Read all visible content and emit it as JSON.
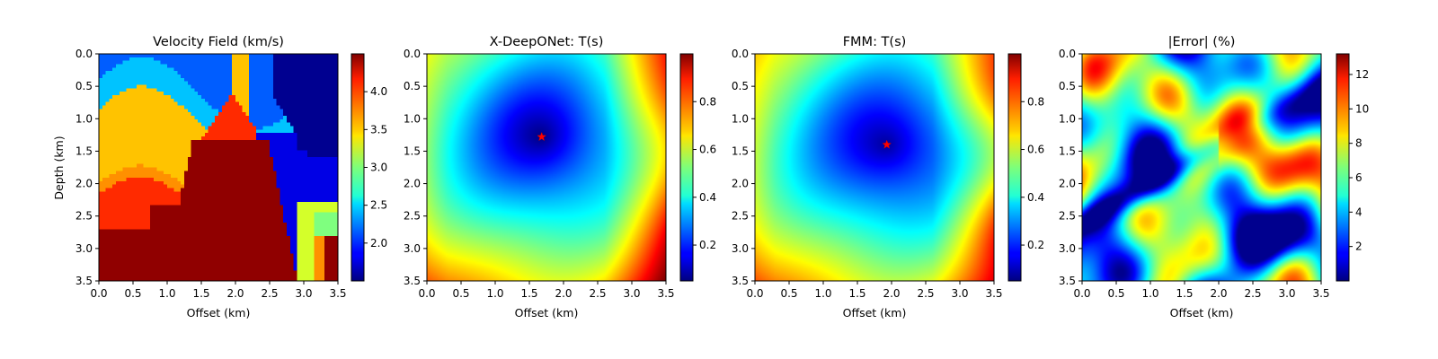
{
  "chart_data": [
    {
      "type": "heatmap",
      "title": "Velocity Field (km/s)",
      "xlabel": "Offset (km)",
      "ylabel": "Depth (km)",
      "xlim": [
        0,
        3.5
      ],
      "ylim": [
        3.5,
        0
      ],
      "x_ticks": [
        "0.0",
        "0.5",
        "1.0",
        "1.5",
        "2.0",
        "2.5",
        "3.0",
        "3.5"
      ],
      "y_ticks": [
        "0.0",
        "0.5",
        "1.0",
        "1.5",
        "2.0",
        "2.5",
        "3.0",
        "3.5"
      ],
      "colormap": "jet",
      "color_range": [
        1.5,
        4.5
      ],
      "colorbar_ticks": [
        "2.0",
        "2.5",
        "3.0",
        "3.5",
        "4.0"
      ],
      "source": null
    },
    {
      "type": "heatmap",
      "title": "X-DeepONet: T(s)",
      "xlabel": "Offset (km)",
      "ylabel": "",
      "xlim": [
        0,
        3.5
      ],
      "ylim": [
        3.5,
        0
      ],
      "x_ticks": [
        "0.0",
        "0.5",
        "1.0",
        "1.5",
        "2.0",
        "2.5",
        "3.0",
        "3.5"
      ],
      "y_ticks": [
        "0.0",
        "0.5",
        "1.0",
        "1.5",
        "2.0",
        "2.5",
        "3.0",
        "3.5"
      ],
      "colormap": "jet",
      "color_range": [
        0.05,
        1.0
      ],
      "colorbar_ticks": [
        "0.2",
        "0.4",
        "0.6",
        "0.8"
      ],
      "source": {
        "x": 1.68,
        "y": 1.28,
        "marker": "red-star"
      }
    },
    {
      "type": "heatmap",
      "title": "FMM: T(s)",
      "xlabel": "Offset (km)",
      "ylabel": "",
      "xlim": [
        0,
        3.5
      ],
      "ylim": [
        3.5,
        0
      ],
      "x_ticks": [
        "0.0",
        "0.5",
        "1.0",
        "1.5",
        "2.0",
        "2.5",
        "3.0",
        "3.5"
      ],
      "y_ticks": [
        "0.0",
        "0.5",
        "1.0",
        "1.5",
        "2.0",
        "2.5",
        "3.0",
        "3.5"
      ],
      "colormap": "jet",
      "color_range": [
        0.05,
        1.0
      ],
      "colorbar_ticks": [
        "0.2",
        "0.4",
        "0.6",
        "0.8"
      ],
      "source": {
        "x": 1.93,
        "y": 1.4,
        "marker": "red-star"
      }
    },
    {
      "type": "heatmap",
      "title": "|Error| (%)",
      "xlabel": "Offset (km)",
      "ylabel": "",
      "xlim": [
        0,
        3.5
      ],
      "ylim": [
        3.5,
        0
      ],
      "x_ticks": [
        "0.0",
        "0.5",
        "1.0",
        "1.5",
        "2.0",
        "2.5",
        "3.0",
        "3.5"
      ],
      "y_ticks": [
        "0.0",
        "0.5",
        "1.0",
        "1.5",
        "2.0",
        "2.5",
        "3.0",
        "3.5"
      ],
      "colormap": "jet",
      "color_range": [
        0,
        13.2
      ],
      "colorbar_ticks": [
        "2",
        "4",
        "6",
        "8",
        "10",
        "12"
      ],
      "source": null
    }
  ]
}
